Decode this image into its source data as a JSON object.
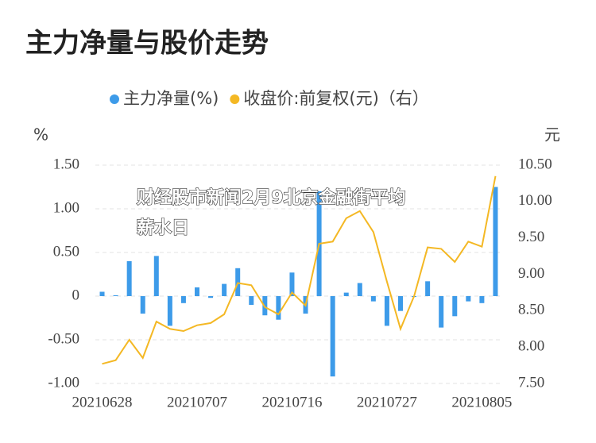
{
  "chart_data": {
    "type": "bar_line",
    "title": "主力净量与股价走势",
    "watermark": [
      "财经股市新闻2月9北京金融街平均",
      "薪水日"
    ],
    "y_axis_label": "%",
    "y2_axis_label": "元",
    "categories": [
      "20210628",
      null,
      null,
      null,
      null,
      null,
      null,
      "20210707",
      null,
      null,
      null,
      null,
      null,
      null,
      "20210716",
      null,
      null,
      null,
      null,
      null,
      null,
      "20210727",
      null,
      null,
      null,
      null,
      null,
      null,
      "20210805",
      null
    ],
    "series": [
      {
        "name": "主力净量(%)",
        "color": "#3d9be9",
        "type": "bar",
        "values": [
          0.05,
          0.01,
          0.4,
          -0.2,
          0.46,
          -0.34,
          -0.08,
          0.1,
          -0.02,
          0.14,
          0.32,
          -0.1,
          -0.22,
          -0.27,
          0.27,
          -0.2,
          1.2,
          -0.92,
          0.04,
          0.15,
          -0.06,
          -0.34,
          -0.17,
          -0.01,
          0.17,
          -0.36,
          -0.23,
          -0.06,
          -0.08,
          1.25
        ]
      },
      {
        "name": "收盘价:前复权(元)（右）",
        "color": "#f4b824",
        "type": "line",
        "axis": "y2",
        "values": [
          7.77,
          7.82,
          8.1,
          7.85,
          8.35,
          8.25,
          8.22,
          8.3,
          8.33,
          8.45,
          8.88,
          8.85,
          8.55,
          8.45,
          8.75,
          8.57,
          9.42,
          9.45,
          9.77,
          9.87,
          9.58,
          8.9,
          8.25,
          8.7,
          9.37,
          9.35,
          9.17,
          9.45,
          9.38,
          10.35
        ]
      }
    ],
    "ylim": [
      -1,
      1.5
    ],
    "yticks": [
      {
        "value": 1.5,
        "label": "1.50"
      },
      {
        "value": 1,
        "label": "1.00"
      },
      {
        "value": 0.5,
        "label": "0.50"
      },
      0,
      {
        "value": -0.5,
        "label": "-0.50"
      },
      {
        "value": -1,
        "label": "-1.00"
      }
    ],
    "y2lim": [
      7.5,
      10.5
    ],
    "y2ticks": [
      {
        "value": 10.5,
        "label": "10.50"
      },
      {
        "value": 10,
        "label": "10.00"
      },
      {
        "value": 9.5,
        "label": "9.50"
      },
      {
        "value": 9,
        "label": "9.00"
      },
      {
        "value": 8.5,
        "label": "8.50"
      },
      {
        "value": 8,
        "label": "8.00"
      },
      {
        "value": 7.5,
        "label": "7.50"
      }
    ],
    "grid": true
  }
}
